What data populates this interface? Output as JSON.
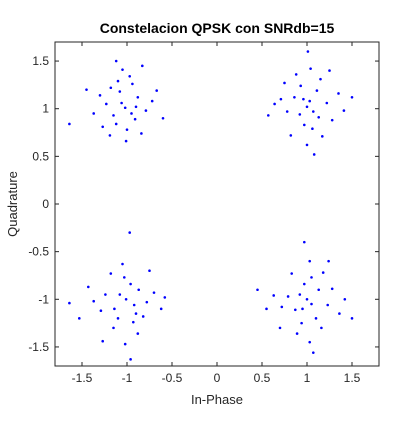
{
  "chart_data": {
    "type": "scatter",
    "title": "Constelacion QPSK con SNRdb=15",
    "xlabel": "In-Phase",
    "ylabel": "Quadrature",
    "xlim": [
      -1.8,
      1.8
    ],
    "ylim": [
      -1.7,
      1.7
    ],
    "x_ticks": [
      -1.5,
      -1,
      -0.5,
      0,
      0.5,
      1,
      1.5
    ],
    "y_ticks": [
      -1.5,
      -1,
      -0.5,
      0,
      0.5,
      1,
      1.5
    ],
    "x_tick_labels": [
      "-1.5",
      "-1",
      "-0.5",
      "0",
      "0.5",
      "1",
      "1.5"
    ],
    "y_tick_labels": [
      "-1.5",
      "-1",
      "-0.5",
      "0",
      "0.5",
      "1",
      "1.5"
    ],
    "grid": false,
    "marker_color": "#0000ff",
    "series": [
      {
        "points": [
          [
            -1.02,
            1.01
          ],
          [
            -0.88,
            1.12
          ],
          [
            -1.15,
            0.93
          ],
          [
            -1.0,
            0.78
          ],
          [
            -0.94,
            1.26
          ],
          [
            -1.23,
            1.05
          ],
          [
            -0.79,
            0.98
          ],
          [
            -1.08,
            1.18
          ],
          [
            -1.12,
            0.84
          ],
          [
            -0.91,
            0.89
          ],
          [
            -1.3,
            1.14
          ],
          [
            -0.97,
            1.34
          ],
          [
            -0.72,
            1.08
          ],
          [
            -1.19,
            0.72
          ],
          [
            -1.05,
            1.41
          ],
          [
            -0.84,
            0.74
          ],
          [
            -1.37,
            0.95
          ],
          [
            -1.1,
            1.29
          ],
          [
            -0.9,
            1.02
          ],
          [
            -1.01,
            0.66
          ],
          [
            -0.67,
            1.19
          ],
          [
            -1.27,
            0.81
          ],
          [
            -1.45,
            1.2
          ],
          [
            -0.6,
            0.9
          ],
          [
            -1.64,
            0.84
          ],
          [
            -1.12,
            1.5
          ],
          [
            -0.83,
            1.45
          ],
          [
            -1.06,
            1.06
          ],
          [
            -0.95,
            0.95
          ],
          [
            -1.18,
            1.22
          ]
        ]
      },
      {
        "points": [
          [
            1.0,
            1.02
          ],
          [
            1.13,
            0.91
          ],
          [
            0.86,
            1.12
          ],
          [
            1.06,
            0.79
          ],
          [
            0.93,
            1.24
          ],
          [
            1.22,
            1.06
          ],
          [
            0.78,
            0.97
          ],
          [
            1.11,
            1.19
          ],
          [
            0.97,
            0.83
          ],
          [
            1.28,
            0.88
          ],
          [
            0.88,
            1.36
          ],
          [
            1.04,
            1.42
          ],
          [
            0.71,
            1.1
          ],
          [
            1.17,
            0.71
          ],
          [
            1.35,
            1.16
          ],
          [
            0.82,
            0.72
          ],
          [
            1.03,
            1.08
          ],
          [
            1.15,
            1.31
          ],
          [
            0.92,
            0.94
          ],
          [
            1.0,
            0.62
          ],
          [
            0.64,
            1.05
          ],
          [
            1.41,
            0.98
          ],
          [
            1.01,
            1.6
          ],
          [
            1.08,
            0.52
          ],
          [
            0.75,
            1.27
          ],
          [
            1.5,
            1.12
          ],
          [
            0.57,
            0.93
          ],
          [
            1.25,
            1.4
          ],
          [
            0.96,
            1.1
          ],
          [
            1.07,
            0.97
          ]
        ]
      },
      {
        "points": [
          [
            -1.01,
            -1.0
          ],
          [
            -0.87,
            -0.9
          ],
          [
            -1.14,
            -1.1
          ],
          [
            -1.03,
            -0.77
          ],
          [
            -0.93,
            -1.24
          ],
          [
            -1.24,
            -0.95
          ],
          [
            -0.78,
            -1.03
          ],
          [
            -1.1,
            -1.2
          ],
          [
            -0.96,
            -0.84
          ],
          [
            -1.29,
            -1.12
          ],
          [
            -0.88,
            -1.36
          ],
          [
            -1.05,
            -0.63
          ],
          [
            -0.7,
            -0.93
          ],
          [
            -1.18,
            -0.73
          ],
          [
            -1.37,
            -1.02
          ],
          [
            -0.82,
            -1.18
          ],
          [
            -1.02,
            -1.47
          ],
          [
            -1.15,
            -1.3
          ],
          [
            -0.92,
            -1.06
          ],
          [
            -0.97,
            -0.3
          ],
          [
            -0.62,
            -1.1
          ],
          [
            -1.43,
            -0.87
          ],
          [
            -1.27,
            -1.44
          ],
          [
            -0.75,
            -0.7
          ],
          [
            -1.64,
            -1.04
          ],
          [
            -0.96,
            -1.63
          ],
          [
            -1.53,
            -1.2
          ],
          [
            -0.58,
            -0.98
          ],
          [
            -1.08,
            -0.95
          ],
          [
            -0.9,
            -1.15
          ]
        ]
      },
      {
        "points": [
          [
            1.0,
            -1.0
          ],
          [
            1.13,
            -0.9
          ],
          [
            0.87,
            -1.11
          ],
          [
            1.05,
            -0.77
          ],
          [
            0.94,
            -1.25
          ],
          [
            1.23,
            -1.06
          ],
          [
            0.79,
            -0.97
          ],
          [
            1.1,
            -1.2
          ],
          [
            0.97,
            -0.84
          ],
          [
            1.28,
            -0.89
          ],
          [
            0.89,
            -1.36
          ],
          [
            1.03,
            -0.6
          ],
          [
            0.72,
            -1.08
          ],
          [
            1.18,
            -0.72
          ],
          [
            1.36,
            -1.15
          ],
          [
            0.83,
            -0.73
          ],
          [
            1.03,
            -1.45
          ],
          [
            1.16,
            -1.3
          ],
          [
            0.92,
            -0.95
          ],
          [
            0.97,
            -0.4
          ],
          [
            0.63,
            -0.96
          ],
          [
            1.42,
            -1.0
          ],
          [
            1.24,
            -0.6
          ],
          [
            0.7,
            -1.3
          ],
          [
            1.5,
            -1.2
          ],
          [
            1.07,
            -1.56
          ],
          [
            0.55,
            -1.1
          ],
          [
            0.45,
            -0.9
          ],
          [
            1.05,
            -1.05
          ],
          [
            0.95,
            -1.1
          ]
        ]
      }
    ]
  }
}
